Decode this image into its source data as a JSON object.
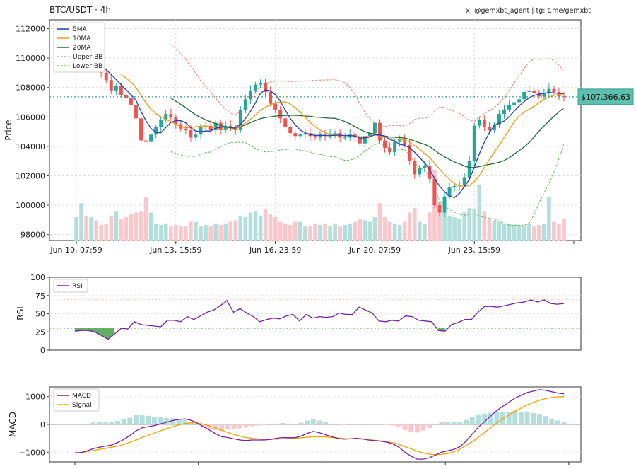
{
  "header": {
    "title": "BTC/USDT · 4h",
    "credit": "x: @gemxbt_agent | tg: t.me/gemxbt"
  },
  "colors": {
    "up": "#26a69a",
    "down": "#ef5350",
    "ma5": "#1f3fb5",
    "ma10": "#f39c12",
    "ma20": "#1e6b3a",
    "upper_bb": "#ef7a7a",
    "lower_bb": "#5cb85c",
    "rsi": "#7b1fa2",
    "macd": "#7b1fa2",
    "signal": "#f0a500",
    "price_tag": "#5dbfae",
    "vol_up": "#b2dfdb",
    "vol_down": "#f8c8cc"
  },
  "chart_data": [
    {
      "type": "candlestick",
      "ylabel": "Price",
      "ylim": [
        97600,
        112600
      ],
      "yticks": [
        98000,
        100000,
        102000,
        104000,
        106000,
        108000,
        110000,
        112000
      ],
      "ytick_labels": [
        "98000",
        "100000",
        "102000",
        "104000",
        "106000",
        "108000",
        "110000",
        "112000"
      ],
      "xtick_labels": [
        "Jun 10, 07:59",
        "Jun 13, 15:59",
        "Jun 16, 23:59",
        "Jun 20, 07:59",
        "Jun 23, 15:59"
      ],
      "xtick_index": [
        0,
        20,
        40,
        60,
        80
      ],
      "grid": true,
      "legend": {
        "position": "top-left",
        "entries": [
          "5MA",
          "10MA",
          "20MA",
          "Upper BB",
          "Lower BB"
        ]
      },
      "last_price_label": "$107,366.63",
      "last_price": 107366.63,
      "close": [
        109600,
        109650,
        109500,
        109800,
        109300,
        109000,
        108500,
        107800,
        108100,
        107500,
        107300,
        106800,
        105900,
        104400,
        104300,
        104800,
        105300,
        105800,
        106200,
        106000,
        105500,
        105200,
        105100,
        104600,
        104800,
        105300,
        105400,
        105100,
        105600,
        105100,
        105400,
        105300,
        105100,
        106500,
        107200,
        107800,
        108200,
        108300,
        107700,
        106900,
        106500,
        105900,
        105300,
        104900,
        104700,
        104800,
        104900,
        104700,
        104600,
        104800,
        104700,
        104800,
        104900,
        104600,
        104600,
        104800,
        104600,
        104200,
        104700,
        104900,
        105600,
        104400,
        103900,
        103600,
        104300,
        104500,
        104100,
        103000,
        102100,
        102500,
        102700,
        101800,
        100000,
        99500,
        100600,
        101200,
        101300,
        101400,
        101900,
        103000,
        105400,
        105800,
        105300,
        105100,
        105500,
        106200,
        106500,
        106800,
        107000,
        107200,
        107700,
        107800,
        107600,
        107400,
        107600,
        107900,
        107700,
        107400,
        107366.63
      ],
      "ohlc_note": "candles: 99 bars, 4h interval",
      "volume_ylim": [
        0,
        2.5
      ],
      "volume": [
        0.75,
        1.2,
        0.8,
        0.75,
        0.65,
        0.5,
        0.55,
        0.8,
        0.95,
        0.7,
        0.75,
        0.85,
        0.9,
        0.95,
        1.4,
        0.9,
        0.55,
        0.5,
        0.55,
        0.45,
        0.5,
        0.45,
        0.45,
        0.6,
        0.6,
        0.45,
        0.5,
        0.45,
        0.55,
        0.5,
        0.55,
        0.6,
        0.65,
        0.8,
        0.75,
        0.9,
        0.95,
        0.8,
        1.0,
        0.85,
        0.75,
        0.6,
        0.55,
        0.5,
        0.6,
        0.6,
        0.45,
        0.45,
        0.55,
        0.5,
        0.55,
        0.45,
        0.55,
        0.45,
        0.5,
        0.55,
        0.6,
        0.7,
        0.65,
        0.6,
        0.75,
        1.2,
        0.75,
        0.6,
        0.55,
        0.5,
        0.6,
        0.9,
        1.05,
        0.6,
        0.55,
        0.9,
        2.25,
        1.25,
        0.9,
        0.8,
        0.75,
        0.7,
        0.9,
        1.05,
        1.0,
        1.8,
        0.95,
        0.7,
        0.65,
        0.6,
        0.55,
        0.55,
        0.5,
        0.5,
        0.45,
        0.55,
        0.45,
        0.5,
        0.55,
        1.4,
        0.6,
        0.55,
        0.7
      ],
      "bb_upper_text": "Upper BB",
      "bb_lower_text": "Lower BB"
    },
    {
      "type": "line",
      "ylabel": "RSI",
      "ylim": [
        0,
        100
      ],
      "yticks": [
        0,
        25,
        50,
        75,
        100
      ],
      "ytick_labels": [
        "0",
        "25",
        "50",
        "75",
        "100"
      ],
      "overbought": 70,
      "oversold": 30,
      "legend": {
        "position": "top-left",
        "entries": [
          "RSI"
        ]
      },
      "series": [
        {
          "name": "RSI",
          "values": [
            26,
            27,
            27,
            25,
            20,
            15,
            22,
            30,
            29,
            39,
            35,
            34,
            33,
            32,
            41,
            41,
            39,
            46,
            42,
            47,
            52,
            55,
            61,
            68,
            52,
            57,
            51,
            46,
            39,
            42,
            44,
            43,
            47,
            49,
            40,
            49,
            44,
            46,
            45,
            46,
            51,
            49,
            49,
            59,
            55,
            51,
            40,
            39,
            41,
            40,
            47,
            46,
            41,
            40,
            39,
            27,
            26,
            35,
            38,
            42,
            42,
            52,
            60,
            60,
            59,
            61,
            63,
            65,
            66,
            69,
            66,
            69,
            64,
            63,
            64
          ]
        }
      ]
    },
    {
      "type": "line",
      "ylabel": "MACD",
      "ylim": [
        -1350,
        1350
      ],
      "yticks": [
        -1000,
        0,
        1000
      ],
      "ytick_labels": [
        "−1000",
        "0",
        "1000"
      ],
      "legend": {
        "position": "top-left",
        "entries": [
          "MACD",
          "Signal"
        ]
      },
      "series": [
        {
          "name": "MACD",
          "values": [
            -1020,
            -1020,
            -950,
            -870,
            -820,
            -780,
            -740,
            -650,
            -540,
            -400,
            -230,
            -120,
            -80,
            -40,
            20,
            80,
            140,
            180,
            200,
            150,
            50,
            -80,
            -200,
            -330,
            -440,
            -470,
            -520,
            -560,
            -580,
            -560,
            -560,
            -560,
            -540,
            -500,
            -470,
            -480,
            -480,
            -420,
            -320,
            -250,
            -300,
            -370,
            -440,
            -500,
            -530,
            -520,
            -500,
            -520,
            -560,
            -580,
            -600,
            -640,
            -700,
            -820,
            -1000,
            -1150,
            -1250,
            -1250,
            -1200,
            -1100,
            -1000,
            -950,
            -900,
            -800,
            -600,
            -350,
            -100,
            100,
            300,
            500,
            650,
            800,
            950,
            1050,
            1150,
            1200,
            1250,
            1230,
            1180,
            1130,
            1100
          ]
        },
        {
          "name": "Signal",
          "values": [
            -1030,
            -1010,
            -980,
            -940,
            -900,
            -860,
            -820,
            -780,
            -720,
            -640,
            -560,
            -470,
            -390,
            -310,
            -230,
            -150,
            -80,
            -20,
            30,
            60,
            50,
            10,
            -50,
            -130,
            -210,
            -290,
            -360,
            -420,
            -470,
            -500,
            -520,
            -540,
            -540,
            -530,
            -520,
            -510,
            -500,
            -480,
            -460,
            -440,
            -440,
            -450,
            -470,
            -490,
            -510,
            -520,
            -520,
            -530,
            -550,
            -570,
            -590,
            -620,
            -660,
            -720,
            -800,
            -880,
            -960,
            -1030,
            -1070,
            -1090,
            -1080,
            -1050,
            -990,
            -890,
            -760,
            -620,
            -460,
            -290,
            -120,
            50,
            200,
            340,
            470,
            590,
            700,
            790,
            870,
            930,
            970,
            990,
            1000
          ]
        }
      ]
    }
  ]
}
